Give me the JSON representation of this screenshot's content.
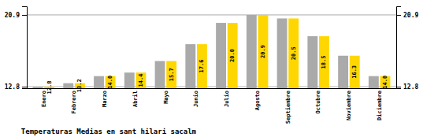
{
  "chart_data": {
    "type": "bar",
    "title": "Temperaturas Medias en sant hilari sacalm",
    "categories": [
      "Enero",
      "Febrero",
      "Marzo",
      "Abril",
      "Mayo",
      "Junio",
      "Julio",
      "Agosto",
      "Septiembre",
      "Octubre",
      "Noviembre",
      "Diciembre"
    ],
    "series": [
      {
        "color": "#AAAAAA",
        "values": [
          12.8,
          13.2,
          14.0,
          14.4,
          15.7,
          17.6,
          20.0,
          20.9,
          20.5,
          18.5,
          16.3,
          14.0
        ]
      },
      {
        "color": "#FFD700",
        "values": [
          12.8,
          13.2,
          14.0,
          14.4,
          15.7,
          17.6,
          20.0,
          20.9,
          20.5,
          18.5,
          16.3,
          14.0
        ],
        "value_labels": [
          "12.8",
          "13.2",
          "14.0",
          "14.4",
          "15.7",
          "17.6",
          "20.0",
          "20.9",
          "20.5",
          "18.5",
          "16.3",
          "14.0"
        ]
      }
    ],
    "ylim": [
      12.638,
      21.872
    ],
    "yticks": [
      12.8,
      20.9
    ],
    "grid": true,
    "data_labels": true
  }
}
